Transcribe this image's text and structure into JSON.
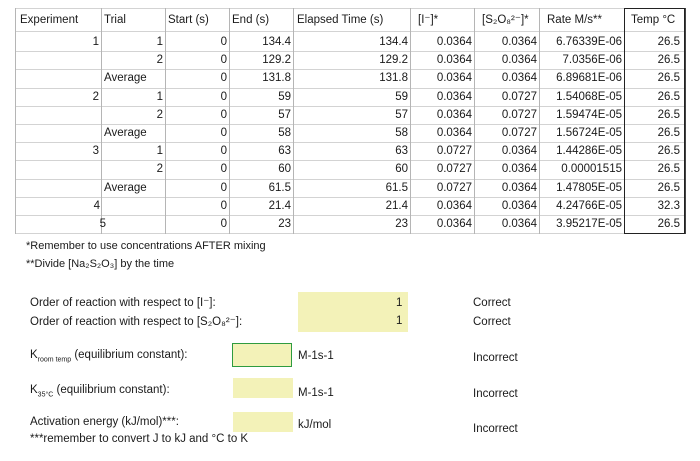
{
  "table": {
    "headers": {
      "experiment": "Experiment",
      "trial": "Trial",
      "start": "Start (s)",
      "end": "End (s)",
      "elapsed": "Elapsed Time (s)",
      "iodide": "[I⁻]*",
      "persulfate": "[S₂O₈²⁻]*",
      "rate": "Rate M/s**",
      "temp": "Temp °C"
    },
    "rows": [
      {
        "experiment": "1",
        "trial": "1",
        "start": "0",
        "end": "134.4",
        "elapsed": "134.4",
        "iodide": "0.0364",
        "persulfate": "0.0364",
        "rate": "6.76339E-06",
        "temp": "26.5"
      },
      {
        "experiment": "",
        "trial": "2",
        "start": "0",
        "end": "129.2",
        "elapsed": "129.2",
        "iodide": "0.0364",
        "persulfate": "0.0364",
        "rate": "7.0356E-06",
        "temp": "26.5"
      },
      {
        "experiment": "",
        "trial": "Average",
        "start": "0",
        "end": "131.8",
        "elapsed": "131.8",
        "iodide": "0.0364",
        "persulfate": "0.0364",
        "rate": "6.89681E-06",
        "temp": "26.5"
      },
      {
        "experiment": "2",
        "trial": "1",
        "start": "0",
        "end": "59",
        "elapsed": "59",
        "iodide": "0.0364",
        "persulfate": "0.0727",
        "rate": "1.54068E-05",
        "temp": "26.5"
      },
      {
        "experiment": "",
        "trial": "2",
        "start": "0",
        "end": "57",
        "elapsed": "57",
        "iodide": "0.0364",
        "persulfate": "0.0727",
        "rate": "1.59474E-05",
        "temp": "26.5"
      },
      {
        "experiment": "",
        "trial": "Average",
        "start": "0",
        "end": "58",
        "elapsed": "58",
        "iodide": "0.0364",
        "persulfate": "0.0727",
        "rate": "1.56724E-05",
        "temp": "26.5"
      },
      {
        "experiment": "3",
        "trial": "1",
        "start": "0",
        "end": "63",
        "elapsed": "63",
        "iodide": "0.0727",
        "persulfate": "0.0364",
        "rate": "1.44286E-05",
        "temp": "26.5"
      },
      {
        "experiment": "",
        "trial": "2",
        "start": "0",
        "end": "60",
        "elapsed": "60",
        "iodide": "0.0727",
        "persulfate": "0.0364",
        "rate": "0.00001515",
        "temp": "26.5"
      },
      {
        "experiment": "",
        "trial": "Average",
        "start": "0",
        "end": "61.5",
        "elapsed": "61.5",
        "iodide": "0.0727",
        "persulfate": "0.0364",
        "rate": "1.47805E-05",
        "temp": "26.5"
      },
      {
        "experiment": "4",
        "trial": "",
        "start": "0",
        "end": "21.4",
        "elapsed": "21.4",
        "iodide": "0.0364",
        "persulfate": "0.0364",
        "rate": "4.24766E-05",
        "temp": "32.3"
      },
      {
        "experiment": "5",
        "trial": "",
        "start": "0",
        "end": "23",
        "elapsed": "23",
        "iodide": "0.0364",
        "persulfate": "0.0364",
        "rate": "3.95217E-05",
        "temp": "26.5"
      }
    ]
  },
  "notes": {
    "note1": "*Remember to use concentrations AFTER mixing",
    "note2": "**Divide [Na₂S₂O₃] by the time"
  },
  "questions": {
    "order_iodide": {
      "label": "Order of reaction with respect to [I⁻]:",
      "value": "1",
      "status": "Correct"
    },
    "order_persulfate": {
      "label": "Order of reaction with respect to [S₂O₈²⁻]:",
      "value": "1",
      "status": "Correct"
    },
    "k_room": {
      "label_main": "K",
      "label_sub": "room temp",
      "label_rest": " (equilibrium constant):",
      "unit": "M-1s-1",
      "status": "Incorrect"
    },
    "k_35": {
      "label_main": "K",
      "label_sub": "35°C",
      "label_rest": " (equilibrium constant):",
      "unit": "M-1s-1",
      "status": "Incorrect"
    },
    "activation": {
      "label": "Activation energy (kJ/mol)***:",
      "note": "***remember to convert J to kJ and °C to K",
      "unit": "kJ/mol",
      "status": "Incorrect"
    }
  }
}
